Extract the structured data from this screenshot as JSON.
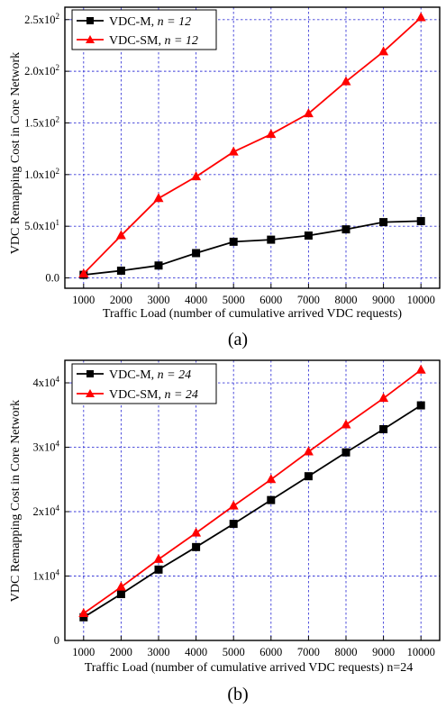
{
  "chart_data": [
    {
      "type": "line",
      "caption": "(a)",
      "xlabel": "Traffic Load (number of cumulative  arrived VDC requests)",
      "ylabel": "VDC Remapping Cost in Core Network",
      "categories": [
        "1000",
        "2000",
        "3000",
        "4000",
        "5000",
        "6000",
        "7000",
        "8000",
        "9000",
        "10000"
      ],
      "xlim": [
        500,
        10500
      ],
      "ylim": [
        -10,
        262
      ],
      "yticks": [
        {
          "value": 0,
          "mant": "0.0",
          "exp": ""
        },
        {
          "value": 50,
          "mant": "5.0x10",
          "exp": "1"
        },
        {
          "value": 100,
          "mant": "1.0x10",
          "exp": "2"
        },
        {
          "value": 150,
          "mant": "1.5x10",
          "exp": "2"
        },
        {
          "value": 200,
          "mant": "2.0x10",
          "exp": "2"
        },
        {
          "value": 250,
          "mant": "2.5x10",
          "exp": "2"
        }
      ],
      "grid": true,
      "legend_position": "top-left",
      "series": [
        {
          "name": "VDC-M",
          "n_label": "n = 12",
          "color": "#000000",
          "marker": "square",
          "x": [
            1000,
            2000,
            3000,
            4000,
            5000,
            6000,
            7000,
            8000,
            9000,
            10000
          ],
          "values": [
            3,
            7,
            12,
            24,
            35,
            37,
            41,
            47,
            54,
            55
          ]
        },
        {
          "name": "VDC-SM",
          "n_label": "n = 12",
          "color": "#ff0000",
          "marker": "triangle",
          "x": [
            1000,
            2000,
            3000,
            4000,
            5000,
            6000,
            7000,
            8000,
            9000,
            10000
          ],
          "values": [
            4,
            41,
            77,
            98,
            122,
            139,
            159,
            190,
            219,
            252
          ]
        }
      ]
    },
    {
      "type": "line",
      "caption": "(b)",
      "xlabel": "Traffic Load (number of cumulative  arrived VDC requests)  n=24",
      "ylabel": "VDC Remapping Cost in Core Network",
      "categories": [
        "1000",
        "2000",
        "3000",
        "4000",
        "5000",
        "6000",
        "7000",
        "8000",
        "9000",
        "10000"
      ],
      "xlim": [
        500,
        10500
      ],
      "ylim": [
        0,
        43500
      ],
      "yticks": [
        {
          "value": 0,
          "mant": "0",
          "exp": ""
        },
        {
          "value": 10000,
          "mant": "1x10",
          "exp": "4"
        },
        {
          "value": 20000,
          "mant": "2x10",
          "exp": "4"
        },
        {
          "value": 30000,
          "mant": "3x10",
          "exp": "4"
        },
        {
          "value": 40000,
          "mant": "4x10",
          "exp": "4"
        }
      ],
      "grid": true,
      "legend_position": "top-left",
      "series": [
        {
          "name": "VDC-M",
          "n_label": "n = 24",
          "color": "#000000",
          "marker": "square",
          "x": [
            1000,
            2000,
            3000,
            4000,
            5000,
            6000,
            7000,
            8000,
            9000,
            10000
          ],
          "values": [
            3600,
            7200,
            11000,
            14500,
            18100,
            21800,
            25500,
            29200,
            32800,
            36500
          ]
        },
        {
          "name": "VDC-SM",
          "n_label": "n = 24",
          "color": "#ff0000",
          "marker": "triangle",
          "x": [
            1000,
            2000,
            3000,
            4000,
            5000,
            6000,
            7000,
            8000,
            9000,
            10000
          ],
          "values": [
            4200,
            8300,
            12600,
            16700,
            20900,
            25000,
            29300,
            33500,
            37600,
            42000
          ]
        }
      ]
    }
  ]
}
